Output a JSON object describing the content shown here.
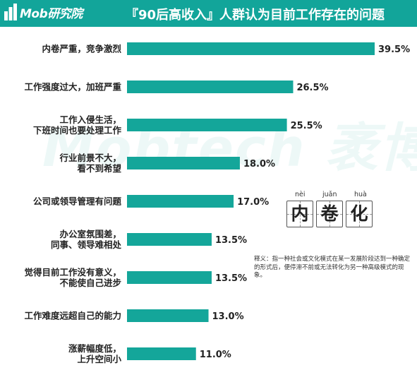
{
  "header": {
    "logo": "Mob研究院",
    "title": "『90后高收入』人群认为目前工作存在的问题"
  },
  "watermark": "Mobtech 袤博",
  "colors": {
    "accent": "#12a59a",
    "bar": "#14a69a",
    "header": "#12a59a"
  },
  "inset": {
    "chars": [
      {
        "pinyin": "nèi",
        "char": "内"
      },
      {
        "pinyin": "juǎn",
        "char": "卷"
      },
      {
        "pinyin": "huà",
        "char": "化"
      }
    ],
    "definition": "释义：指一种社会或文化模式在某一发展阶段达到一种确定的形式后，便停滞不前或无法转化为另一种高级模式的现象。"
  },
  "chart_data": {
    "type": "bar",
    "orientation": "horizontal",
    "title": "『90后高收入』人群认为目前工作存在的问题",
    "categories": [
      [
        "内卷严重，竞争激烈"
      ],
      [
        "工作强度过大，加班严重"
      ],
      [
        "工作入侵生活，",
        "下班时间也要处理工作"
      ],
      [
        "行业前景不大，",
        "看不到希望"
      ],
      [
        "公司或领导管理有问题"
      ],
      [
        "办公室氛围差，",
        "同事、领导难相处"
      ],
      [
        "觉得目前工作没有意义，",
        "不能使自己进步"
      ],
      [
        "工作难度远超自己的能力"
      ],
      [
        "涨薪幅度低，",
        "上升空间小"
      ]
    ],
    "values": [
      39.5,
      26.5,
      25.5,
      18.0,
      17.0,
      13.5,
      13.5,
      13.0,
      11.0
    ],
    "value_labels": [
      "39.5%",
      "26.5%",
      "25.5%",
      "18.0%",
      "17.0%",
      "13.5%",
      "13.5%",
      "13.0%",
      "11.0%"
    ],
    "xlim": [
      0,
      39.5
    ],
    "grid": false,
    "legend": "none"
  }
}
